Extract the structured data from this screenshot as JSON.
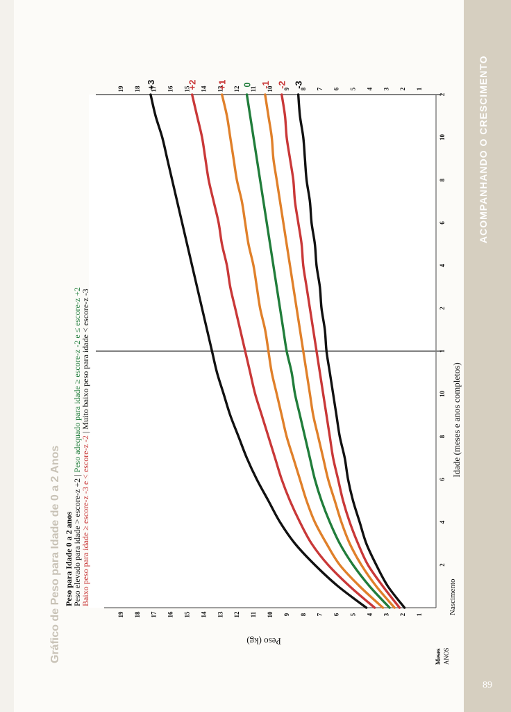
{
  "sidebar": {
    "section_title": "ACOMPANHANDO O CRESCIMENTO",
    "page_number": "89"
  },
  "chart_data": {
    "type": "line",
    "title": "Gráfico de Peso para Idade de 0 a 2 Anos",
    "legend": {
      "heading": "Peso para Idade 0 a 2 anos",
      "line1": "Peso elevado para idade > escore-z +2",
      "sep1": " | ",
      "line1b": "Peso adequado para idade ≥ escore-z -2 e ≤ escore-z +2",
      "line2": "Baixo peso para idade ≥ escore-z -3 e < escore-z -2",
      "sep2": " | ",
      "line2b": "Muito baixo peso para idade < escore-z -3"
    },
    "ylabel": "Peso (kg)",
    "xlabel": "Idade (meses e anos completos)",
    "x_axis_caption_months": "Meses",
    "x_axis_caption_years": "ANOS",
    "x_start_label": "Nascimento",
    "ylim": [
      0,
      20
    ],
    "xlim": [
      0,
      24
    ],
    "y_ticks": [
      "1",
      "2",
      "3",
      "4",
      "5",
      "6",
      "7",
      "8",
      "9",
      "10",
      "11",
      "12",
      "13",
      "14",
      "15",
      "16",
      "17",
      "18",
      "19"
    ],
    "x_tick_labels": [
      {
        "x": 2,
        "label": "2"
      },
      {
        "x": 4,
        "label": "4"
      },
      {
        "x": 6,
        "label": "6"
      },
      {
        "x": 8,
        "label": "8"
      },
      {
        "x": 10,
        "label": "10"
      },
      {
        "x": 12,
        "label": "1"
      },
      {
        "x": 14,
        "label": "2"
      },
      {
        "x": 16,
        "label": "4"
      },
      {
        "x": 18,
        "label": "6"
      },
      {
        "x": 20,
        "label": "8"
      },
      {
        "x": 22,
        "label": "10"
      },
      {
        "x": 24,
        "label": "2"
      }
    ],
    "year_lines": [
      12,
      24
    ],
    "grid": true,
    "x": [
      0,
      1,
      2,
      3,
      4,
      5,
      6,
      7,
      8,
      9,
      10,
      11,
      12,
      13,
      14,
      15,
      16,
      17,
      18,
      19,
      20,
      21,
      22,
      23,
      24
    ],
    "series": [
      {
        "name": "+3",
        "color": "#111111",
        "values": [
          4.2,
          5.9,
          7.3,
          8.5,
          9.4,
          10.1,
          10.8,
          11.4,
          11.9,
          12.4,
          12.8,
          13.2,
          13.5,
          13.8,
          14.1,
          14.4,
          14.7,
          15.0,
          15.3,
          15.6,
          15.9,
          16.2,
          16.5,
          16.9,
          17.2
        ]
      },
      {
        "name": "+2",
        "color": "#c93838",
        "values": [
          3.7,
          5.2,
          6.5,
          7.5,
          8.2,
          8.8,
          9.3,
          9.7,
          10.1,
          10.5,
          10.9,
          11.2,
          11.5,
          11.8,
          12.1,
          12.4,
          12.6,
          12.9,
          13.1,
          13.4,
          13.7,
          13.9,
          14.1,
          14.4,
          14.7
        ]
      },
      {
        "name": "+1",
        "color": "#e0802a",
        "values": [
          3.2,
          4.6,
          5.8,
          6.6,
          7.3,
          7.8,
          8.2,
          8.6,
          9.0,
          9.3,
          9.6,
          9.9,
          10.1,
          10.3,
          10.6,
          10.8,
          11.0,
          11.3,
          11.5,
          11.7,
          12.0,
          12.2,
          12.4,
          12.6,
          12.9
        ]
      },
      {
        "name": "0",
        "color": "#217d3b",
        "values": [
          2.8,
          4.0,
          5.0,
          5.8,
          6.4,
          6.9,
          7.3,
          7.6,
          7.9,
          8.2,
          8.5,
          8.7,
          9.0,
          9.2,
          9.4,
          9.6,
          9.8,
          10.0,
          10.2,
          10.4,
          10.6,
          10.8,
          11.0,
          11.2,
          11.4
        ]
      },
      {
        "name": "-1",
        "color": "#e0802a",
        "values": [
          2.5,
          3.6,
          4.5,
          5.2,
          5.7,
          6.1,
          6.5,
          6.8,
          7.1,
          7.4,
          7.6,
          7.8,
          8.0,
          8.2,
          8.4,
          8.6,
          8.8,
          9.0,
          9.2,
          9.4,
          9.6,
          9.8,
          9.9,
          10.1,
          10.3
        ]
      },
      {
        "name": "-2",
        "color": "#c93838",
        "values": [
          2.2,
          3.2,
          4.1,
          4.7,
          5.2,
          5.6,
          5.9,
          6.2,
          6.4,
          6.6,
          6.8,
          7.0,
          7.2,
          7.4,
          7.6,
          7.8,
          8.0,
          8.1,
          8.3,
          8.5,
          8.6,
          8.8,
          9.0,
          9.1,
          9.3
        ]
      },
      {
        "name": "-3",
        "color": "#111111",
        "values": [
          1.9,
          2.9,
          3.6,
          4.2,
          4.6,
          5.0,
          5.3,
          5.5,
          5.8,
          6.0,
          6.2,
          6.4,
          6.6,
          6.7,
          6.9,
          7.0,
          7.2,
          7.3,
          7.5,
          7.6,
          7.8,
          7.9,
          8.0,
          8.2,
          8.3
        ]
      }
    ],
    "label_colors": {
      "+3": "#111111",
      "+2": "#c93838",
      "+1": "#c93838",
      "0": "#217d3b",
      "-1": "#c93838",
      "-2": "#c93838",
      "-3": "#111111"
    },
    "legend_colors": {
      "dark": "#111111",
      "green": "#217d3b",
      "red": "#c93838"
    },
    "title_color": "#c8c2b6"
  }
}
